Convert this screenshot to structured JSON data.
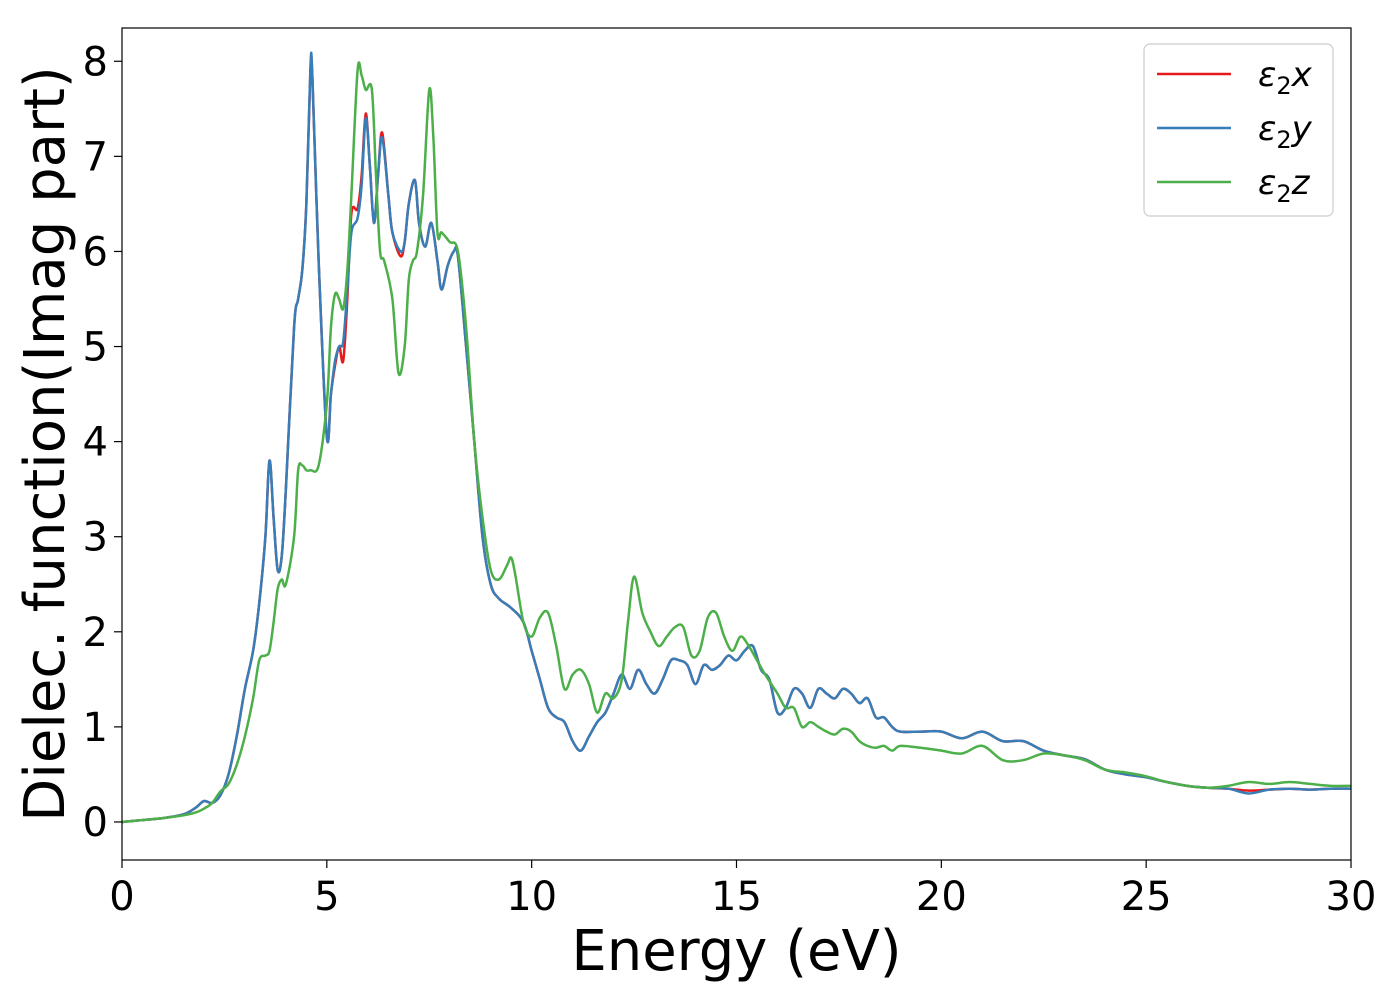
{
  "chart_data": {
    "type": "line",
    "title": "",
    "xlabel": "Energy (eV)",
    "ylabel": "Dielec. function(Imag part)",
    "xlim": [
      0,
      30
    ],
    "ylim": [
      -0.4,
      8.35
    ],
    "xticks": [
      0,
      5,
      10,
      15,
      20,
      25,
      30
    ],
    "yticks": [
      0,
      1,
      2,
      3,
      4,
      5,
      6,
      7,
      8
    ],
    "grid": false,
    "legend_position": "top-right",
    "series": [
      {
        "name": "ε₂x",
        "label_base": "ε",
        "label_sub": "2",
        "label_var": "x",
        "color": "#e41a1c",
        "x": [
          0,
          0.5,
          1.0,
          1.5,
          1.8,
          2.0,
          2.2,
          2.4,
          2.6,
          2.8,
          3.0,
          3.2,
          3.35,
          3.5,
          3.6,
          3.7,
          3.8,
          3.9,
          4.0,
          4.2,
          4.3,
          4.4,
          4.5,
          4.6,
          4.65,
          4.8,
          5.0,
          5.1,
          5.2,
          5.3,
          5.4,
          5.5,
          5.6,
          5.75,
          5.85,
          5.95,
          6.05,
          6.15,
          6.25,
          6.35,
          6.5,
          6.6,
          6.8,
          6.9,
          7.0,
          7.15,
          7.25,
          7.4,
          7.55,
          7.7,
          7.8,
          7.95,
          8.1,
          8.2,
          8.4,
          8.6,
          8.8,
          9.0,
          9.2,
          9.5,
          9.8,
          10.0,
          10.2,
          10.4,
          10.6,
          10.8,
          11.0,
          11.2,
          11.4,
          11.6,
          11.8,
          12.0,
          12.2,
          12.4,
          12.6,
          12.8,
          13.0,
          13.2,
          13.4,
          13.6,
          13.8,
          14.0,
          14.2,
          14.4,
          14.6,
          14.8,
          15.0,
          15.2,
          15.4,
          15.6,
          15.8,
          16.0,
          16.2,
          16.4,
          16.6,
          16.8,
          17.0,
          17.2,
          17.4,
          17.6,
          17.8,
          18.0,
          18.2,
          18.4,
          18.6,
          18.8,
          19.0,
          19.5,
          20.0,
          20.5,
          21.0,
          21.5,
          22.0,
          22.5,
          23.0,
          23.5,
          24.0,
          24.5,
          25.0,
          25.5,
          26.0,
          26.5,
          27.0,
          27.5,
          28.0,
          28.5,
          29.0,
          29.5,
          30.0
        ],
        "y": [
          0.0,
          0.02,
          0.04,
          0.08,
          0.15,
          0.22,
          0.2,
          0.28,
          0.5,
          0.9,
          1.4,
          1.8,
          2.3,
          3.0,
          3.8,
          3.2,
          2.65,
          2.8,
          3.5,
          5.2,
          5.5,
          5.8,
          6.5,
          7.9,
          7.8,
          5.9,
          4.05,
          4.5,
          4.8,
          5.0,
          4.85,
          5.5,
          6.4,
          6.45,
          6.8,
          7.45,
          6.9,
          6.3,
          6.8,
          7.25,
          6.6,
          6.2,
          5.95,
          6.1,
          6.5,
          6.75,
          6.3,
          6.05,
          6.3,
          5.9,
          5.6,
          5.85,
          6.0,
          5.95,
          5.0,
          4.0,
          3.0,
          2.5,
          2.35,
          2.25,
          2.1,
          1.8,
          1.5,
          1.2,
          1.1,
          1.05,
          0.85,
          0.75,
          0.9,
          1.05,
          1.15,
          1.35,
          1.55,
          1.4,
          1.6,
          1.45,
          1.35,
          1.5,
          1.7,
          1.7,
          1.65,
          1.45,
          1.65,
          1.6,
          1.65,
          1.75,
          1.7,
          1.8,
          1.85,
          1.6,
          1.5,
          1.15,
          1.2,
          1.4,
          1.35,
          1.2,
          1.4,
          1.35,
          1.3,
          1.4,
          1.35,
          1.25,
          1.3,
          1.1,
          1.1,
          1.0,
          0.95,
          0.95,
          0.95,
          0.88,
          0.95,
          0.85,
          0.85,
          0.75,
          0.7,
          0.66,
          0.55,
          0.5,
          0.47,
          0.42,
          0.38,
          0.36,
          0.35,
          0.33,
          0.34,
          0.35,
          0.34,
          0.35,
          0.35
        ],
        "line_width": 2.5
      },
      {
        "name": "ε₂y",
        "label_base": "ε",
        "label_sub": "2",
        "label_var": "y",
        "color": "#377eb8",
        "x": [
          0,
          0.5,
          1.0,
          1.5,
          1.8,
          2.0,
          2.2,
          2.4,
          2.6,
          2.8,
          3.0,
          3.2,
          3.35,
          3.5,
          3.6,
          3.7,
          3.8,
          3.9,
          4.0,
          4.2,
          4.3,
          4.4,
          4.5,
          4.6,
          4.65,
          4.8,
          5.0,
          5.1,
          5.2,
          5.3,
          5.4,
          5.5,
          5.6,
          5.75,
          5.85,
          5.95,
          6.05,
          6.15,
          6.25,
          6.35,
          6.5,
          6.6,
          6.8,
          6.9,
          7.0,
          7.15,
          7.25,
          7.4,
          7.55,
          7.7,
          7.8,
          7.95,
          8.1,
          8.2,
          8.4,
          8.6,
          8.8,
          9.0,
          9.2,
          9.5,
          9.8,
          10.0,
          10.2,
          10.4,
          10.6,
          10.8,
          11.0,
          11.2,
          11.4,
          11.6,
          11.8,
          12.0,
          12.2,
          12.4,
          12.6,
          12.8,
          13.0,
          13.2,
          13.4,
          13.6,
          13.8,
          14.0,
          14.2,
          14.4,
          14.6,
          14.8,
          15.0,
          15.2,
          15.4,
          15.6,
          15.8,
          16.0,
          16.2,
          16.4,
          16.6,
          16.8,
          17.0,
          17.2,
          17.4,
          17.6,
          17.8,
          18.0,
          18.2,
          18.4,
          18.6,
          18.8,
          19.0,
          19.5,
          20.0,
          20.5,
          21.0,
          21.5,
          22.0,
          22.5,
          23.0,
          23.5,
          24.0,
          24.5,
          25.0,
          25.5,
          26.0,
          26.5,
          27.0,
          27.5,
          28.0,
          28.5,
          29.0,
          29.5,
          30.0
        ],
        "y": [
          0.0,
          0.02,
          0.04,
          0.08,
          0.15,
          0.22,
          0.2,
          0.28,
          0.5,
          0.9,
          1.4,
          1.8,
          2.3,
          3.0,
          3.8,
          3.2,
          2.65,
          2.8,
          3.5,
          5.2,
          5.5,
          5.8,
          6.5,
          7.95,
          7.8,
          5.9,
          4.05,
          4.5,
          4.85,
          5.0,
          5.05,
          5.6,
          6.2,
          6.35,
          6.7,
          7.4,
          6.9,
          6.3,
          6.8,
          7.2,
          6.6,
          6.2,
          6.0,
          6.1,
          6.5,
          6.75,
          6.3,
          6.05,
          6.3,
          5.9,
          5.6,
          5.85,
          6.0,
          5.95,
          5.0,
          4.0,
          3.0,
          2.5,
          2.35,
          2.25,
          2.1,
          1.8,
          1.5,
          1.2,
          1.1,
          1.05,
          0.85,
          0.75,
          0.9,
          1.05,
          1.15,
          1.35,
          1.55,
          1.4,
          1.6,
          1.45,
          1.35,
          1.5,
          1.7,
          1.7,
          1.65,
          1.45,
          1.65,
          1.6,
          1.65,
          1.75,
          1.7,
          1.8,
          1.85,
          1.6,
          1.5,
          1.15,
          1.2,
          1.4,
          1.35,
          1.2,
          1.4,
          1.35,
          1.3,
          1.4,
          1.35,
          1.25,
          1.3,
          1.1,
          1.1,
          1.0,
          0.95,
          0.95,
          0.95,
          0.88,
          0.95,
          0.85,
          0.85,
          0.75,
          0.7,
          0.66,
          0.55,
          0.5,
          0.47,
          0.42,
          0.38,
          0.36,
          0.35,
          0.3,
          0.34,
          0.35,
          0.34,
          0.35,
          0.35
        ],
        "line_width": 2.5
      },
      {
        "name": "ε₂z",
        "label_base": "ε",
        "label_sub": "2",
        "label_var": "z",
        "color": "#4daf4a",
        "x": [
          0,
          0.5,
          1.0,
          1.5,
          1.8,
          2.0,
          2.2,
          2.4,
          2.6,
          2.8,
          3.0,
          3.2,
          3.35,
          3.5,
          3.6,
          3.7,
          3.8,
          3.9,
          4.0,
          4.2,
          4.3,
          4.4,
          4.5,
          4.6,
          4.8,
          5.0,
          5.1,
          5.2,
          5.3,
          5.4,
          5.5,
          5.6,
          5.75,
          5.85,
          5.95,
          6.1,
          6.2,
          6.3,
          6.4,
          6.6,
          6.75,
          6.9,
          7.0,
          7.1,
          7.2,
          7.35,
          7.5,
          7.6,
          7.7,
          7.8,
          8.0,
          8.2,
          8.4,
          8.6,
          8.8,
          9.0,
          9.2,
          9.4,
          9.5,
          9.6,
          9.8,
          10.0,
          10.2,
          10.4,
          10.6,
          10.8,
          11.0,
          11.2,
          11.4,
          11.6,
          11.8,
          12.0,
          12.2,
          12.35,
          12.5,
          12.7,
          12.9,
          13.1,
          13.3,
          13.5,
          13.7,
          13.9,
          14.1,
          14.3,
          14.5,
          14.7,
          14.9,
          15.1,
          15.3,
          15.5,
          15.7,
          16.0,
          16.2,
          16.4,
          16.6,
          16.8,
          17.0,
          17.2,
          17.4,
          17.6,
          17.8,
          18.0,
          18.2,
          18.4,
          18.6,
          18.8,
          19.0,
          19.5,
          20.0,
          20.5,
          21.0,
          21.5,
          22.0,
          22.5,
          23.0,
          23.5,
          24.0,
          24.5,
          25.0,
          25.5,
          26.0,
          26.5,
          27.0,
          27.5,
          28.0,
          28.5,
          29.0,
          29.5,
          30.0
        ],
        "y": [
          0.0,
          0.02,
          0.04,
          0.07,
          0.1,
          0.14,
          0.2,
          0.32,
          0.4,
          0.6,
          0.9,
          1.3,
          1.7,
          1.75,
          1.8,
          2.1,
          2.45,
          2.55,
          2.5,
          3.0,
          3.7,
          3.75,
          3.7,
          3.7,
          3.75,
          4.4,
          5.2,
          5.55,
          5.5,
          5.4,
          5.8,
          6.6,
          7.9,
          7.85,
          7.7,
          7.7,
          6.8,
          6.0,
          5.9,
          5.5,
          4.72,
          5.0,
          5.7,
          5.9,
          6.0,
          6.6,
          7.7,
          7.2,
          6.2,
          6.2,
          6.1,
          6.0,
          5.2,
          4.0,
          3.2,
          2.65,
          2.55,
          2.7,
          2.78,
          2.6,
          2.1,
          1.95,
          2.15,
          2.2,
          1.85,
          1.4,
          1.55,
          1.6,
          1.45,
          1.15,
          1.35,
          1.3,
          1.5,
          2.1,
          2.58,
          2.2,
          2.0,
          1.85,
          1.95,
          2.05,
          2.05,
          1.75,
          1.8,
          2.15,
          2.2,
          1.95,
          1.8,
          1.95,
          1.85,
          1.7,
          1.55,
          1.35,
          1.2,
          1.2,
          1.0,
          1.05,
          1.0,
          0.95,
          0.92,
          0.98,
          0.95,
          0.85,
          0.8,
          0.78,
          0.8,
          0.75,
          0.8,
          0.78,
          0.75,
          0.72,
          0.8,
          0.65,
          0.65,
          0.72,
          0.7,
          0.65,
          0.55,
          0.52,
          0.48,
          0.42,
          0.38,
          0.36,
          0.38,
          0.42,
          0.4,
          0.42,
          0.4,
          0.38,
          0.38
        ],
        "line_width": 2.5
      }
    ]
  }
}
